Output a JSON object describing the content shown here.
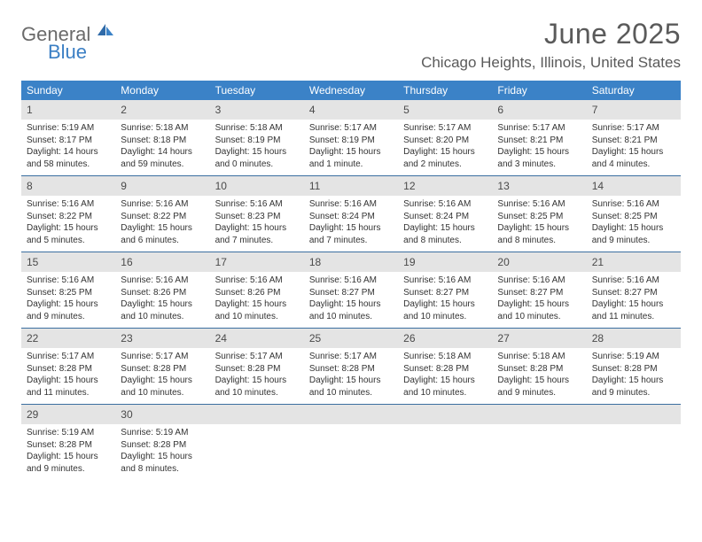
{
  "logo": {
    "word1": "General",
    "word2": "Blue"
  },
  "title": "June 2025",
  "location": "Chicago Heights, Illinois, United States",
  "colors": {
    "header_bg": "#3b82c7",
    "header_text": "#ffffff",
    "daynum_bg": "#e4e4e4",
    "week_divider": "#3b6fa0",
    "title_text": "#5a5a5a",
    "body_text": "#333333",
    "logo_gray": "#6a6a6a",
    "logo_blue": "#3b7fc4"
  },
  "weekdays": [
    "Sunday",
    "Monday",
    "Tuesday",
    "Wednesday",
    "Thursday",
    "Friday",
    "Saturday"
  ],
  "weeks": [
    [
      {
        "n": "1",
        "sr": "5:19 AM",
        "ss": "8:17 PM",
        "dl": "14 hours and 58 minutes."
      },
      {
        "n": "2",
        "sr": "5:18 AM",
        "ss": "8:18 PM",
        "dl": "14 hours and 59 minutes."
      },
      {
        "n": "3",
        "sr": "5:18 AM",
        "ss": "8:19 PM",
        "dl": "15 hours and 0 minutes."
      },
      {
        "n": "4",
        "sr": "5:17 AM",
        "ss": "8:19 PM",
        "dl": "15 hours and 1 minute."
      },
      {
        "n": "5",
        "sr": "5:17 AM",
        "ss": "8:20 PM",
        "dl": "15 hours and 2 minutes."
      },
      {
        "n": "6",
        "sr": "5:17 AM",
        "ss": "8:21 PM",
        "dl": "15 hours and 3 minutes."
      },
      {
        "n": "7",
        "sr": "5:17 AM",
        "ss": "8:21 PM",
        "dl": "15 hours and 4 minutes."
      }
    ],
    [
      {
        "n": "8",
        "sr": "5:16 AM",
        "ss": "8:22 PM",
        "dl": "15 hours and 5 minutes."
      },
      {
        "n": "9",
        "sr": "5:16 AM",
        "ss": "8:22 PM",
        "dl": "15 hours and 6 minutes."
      },
      {
        "n": "10",
        "sr": "5:16 AM",
        "ss": "8:23 PM",
        "dl": "15 hours and 7 minutes."
      },
      {
        "n": "11",
        "sr": "5:16 AM",
        "ss": "8:24 PM",
        "dl": "15 hours and 7 minutes."
      },
      {
        "n": "12",
        "sr": "5:16 AM",
        "ss": "8:24 PM",
        "dl": "15 hours and 8 minutes."
      },
      {
        "n": "13",
        "sr": "5:16 AM",
        "ss": "8:25 PM",
        "dl": "15 hours and 8 minutes."
      },
      {
        "n": "14",
        "sr": "5:16 AM",
        "ss": "8:25 PM",
        "dl": "15 hours and 9 minutes."
      }
    ],
    [
      {
        "n": "15",
        "sr": "5:16 AM",
        "ss": "8:25 PM",
        "dl": "15 hours and 9 minutes."
      },
      {
        "n": "16",
        "sr": "5:16 AM",
        "ss": "8:26 PM",
        "dl": "15 hours and 10 minutes."
      },
      {
        "n": "17",
        "sr": "5:16 AM",
        "ss": "8:26 PM",
        "dl": "15 hours and 10 minutes."
      },
      {
        "n": "18",
        "sr": "5:16 AM",
        "ss": "8:27 PM",
        "dl": "15 hours and 10 minutes."
      },
      {
        "n": "19",
        "sr": "5:16 AM",
        "ss": "8:27 PM",
        "dl": "15 hours and 10 minutes."
      },
      {
        "n": "20",
        "sr": "5:16 AM",
        "ss": "8:27 PM",
        "dl": "15 hours and 10 minutes."
      },
      {
        "n": "21",
        "sr": "5:16 AM",
        "ss": "8:27 PM",
        "dl": "15 hours and 11 minutes."
      }
    ],
    [
      {
        "n": "22",
        "sr": "5:17 AM",
        "ss": "8:28 PM",
        "dl": "15 hours and 11 minutes."
      },
      {
        "n": "23",
        "sr": "5:17 AM",
        "ss": "8:28 PM",
        "dl": "15 hours and 10 minutes."
      },
      {
        "n": "24",
        "sr": "5:17 AM",
        "ss": "8:28 PM",
        "dl": "15 hours and 10 minutes."
      },
      {
        "n": "25",
        "sr": "5:17 AM",
        "ss": "8:28 PM",
        "dl": "15 hours and 10 minutes."
      },
      {
        "n": "26",
        "sr": "5:18 AM",
        "ss": "8:28 PM",
        "dl": "15 hours and 10 minutes."
      },
      {
        "n": "27",
        "sr": "5:18 AM",
        "ss": "8:28 PM",
        "dl": "15 hours and 9 minutes."
      },
      {
        "n": "28",
        "sr": "5:19 AM",
        "ss": "8:28 PM",
        "dl": "15 hours and 9 minutes."
      }
    ],
    [
      {
        "n": "29",
        "sr": "5:19 AM",
        "ss": "8:28 PM",
        "dl": "15 hours and 9 minutes."
      },
      {
        "n": "30",
        "sr": "5:19 AM",
        "ss": "8:28 PM",
        "dl": "15 hours and 8 minutes."
      },
      null,
      null,
      null,
      null,
      null
    ]
  ],
  "labels": {
    "sunrise": "Sunrise: ",
    "sunset": "Sunset: ",
    "daylight": "Daylight: "
  }
}
